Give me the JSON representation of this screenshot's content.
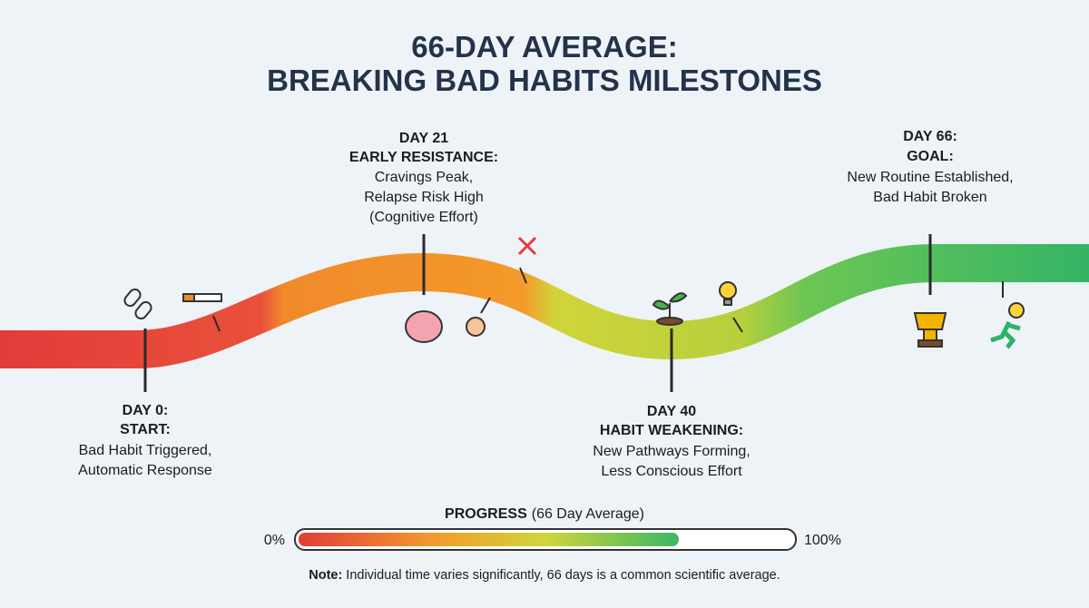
{
  "title": [
    "66-DAY AVERAGE:",
    "BREAKING BAD HABITS MILESTONES"
  ],
  "milestones": [
    {
      "day": "DAY 0:",
      "heading": "START:",
      "lines": [
        "Bad Habit Triggered,",
        "Automatic Response"
      ]
    },
    {
      "day": "DAY 21",
      "heading": "EARLY RESISTANCE:",
      "lines": [
        "Cravings Peak,",
        "Relapse Risk High",
        "(Cognitive Effort)"
      ]
    },
    {
      "day": "DAY 40",
      "heading": "HABIT WEAKENING:",
      "lines": [
        "New Pathways Forming,",
        "Less Conscious Effort"
      ]
    },
    {
      "day": "DAY 66:",
      "heading": "GOAL:",
      "lines": [
        "New Routine Established,",
        "Bad Habit Broken"
      ]
    }
  ],
  "progress": {
    "label": "PROGRESS",
    "sublabel": "(66 Day Average)",
    "scale": [
      {
        "value": 0,
        "label": "0%"
      },
      {
        "value": 100,
        "label": "100%"
      }
    ],
    "value": 77
  },
  "note": {
    "label": "Note:",
    "text": "Individual time varies significantly, 66 days is a common scientific average."
  }
}
